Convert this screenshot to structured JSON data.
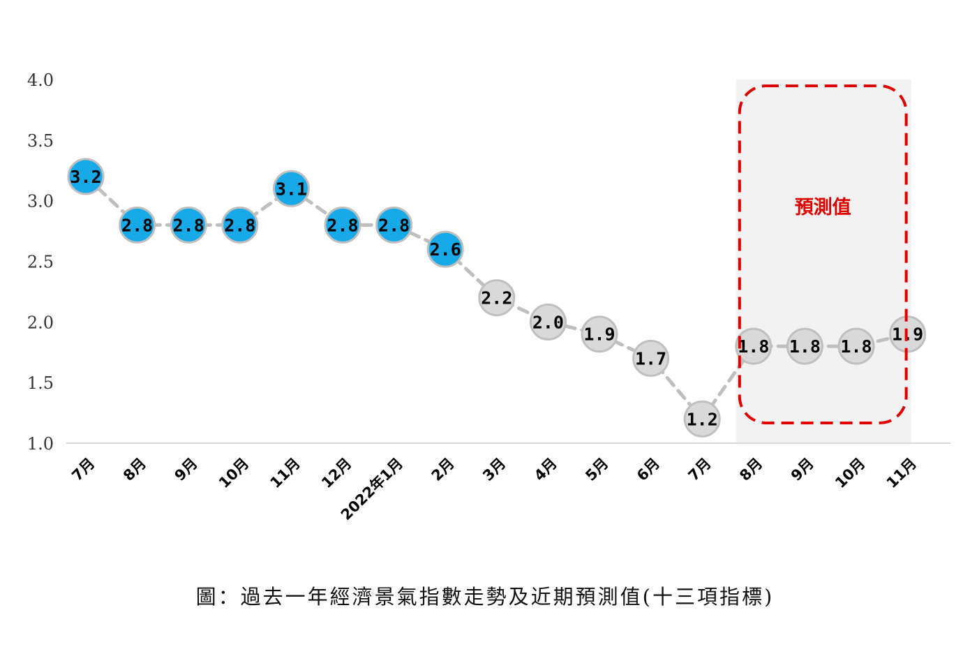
{
  "chart_data": {
    "type": "line",
    "categories": [
      "7月",
      "8月",
      "9月",
      "10月",
      "11月",
      "12月",
      "2022年1月",
      "2月",
      "3月",
      "4月",
      "5月",
      "6月",
      "7月",
      "8月",
      "9月",
      "10月",
      "11月"
    ],
    "values": [
      3.2,
      2.8,
      2.8,
      2.8,
      3.1,
      2.8,
      2.8,
      2.6,
      2.2,
      2.0,
      1.9,
      1.7,
      1.2,
      1.8,
      1.8,
      1.8,
      1.9
    ],
    "value_labels": [
      "3.2",
      "2.8",
      "2.8",
      "2.8",
      "3.1",
      "2.8",
      "2.8",
      "2.6",
      "2.2",
      "2.0",
      "1.9",
      "1.7",
      "1.2",
      "1.8",
      "1.8",
      "1.8",
      "1.9"
    ],
    "ylim": [
      1.0,
      4.0
    ],
    "yticks": [
      "1.0",
      "1.5",
      "2.0",
      "2.5",
      "3.0",
      "3.5",
      "4.0"
    ],
    "highlight_count": 8,
    "forecast_start_index": 13,
    "forecast_label": "預測值",
    "grid": false,
    "colors": {
      "highlight_fill": "#18a9e8",
      "normal_fill": "#d9d9d9",
      "marker_edge": "#bfbfbf",
      "line": "#bfbfbf",
      "forecast_box": "#e00000",
      "forecast_shade": "#f2f2f2",
      "axis": "#d9d9d9"
    }
  },
  "caption": "圖：過去一年經濟景氣指數走勢及近期預測值(十三項指標)"
}
